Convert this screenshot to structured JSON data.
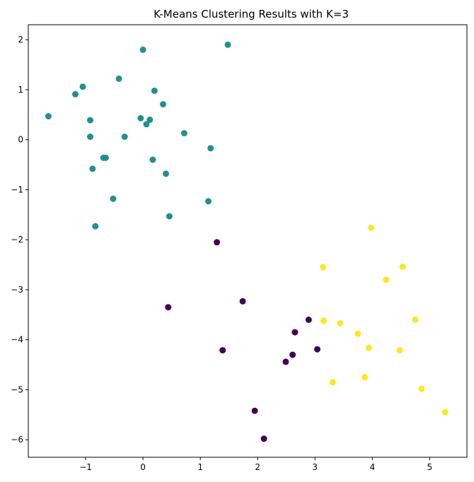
{
  "chart_data": {
    "type": "scatter",
    "title": "K-Means Clustering Results with K=3",
    "xlabel": "",
    "ylabel": "",
    "xlim": [
      -2.0,
      5.65
    ],
    "ylim": [
      -6.35,
      2.3
    ],
    "xticks": [
      -1,
      0,
      1,
      2,
      3,
      4,
      5
    ],
    "xtick_labels": [
      "−1",
      "0",
      "1",
      "2",
      "3",
      "4",
      "5"
    ],
    "yticks": [
      2,
      1,
      0,
      -1,
      -2,
      -3,
      -4,
      -5,
      -6
    ],
    "ytick_labels": [
      "2",
      "1",
      "0",
      "−1",
      "−2",
      "−3",
      "−4",
      "−5",
      "−6"
    ],
    "grid": false,
    "legend": false,
    "series": [
      {
        "color": "#21918c",
        "points": [
          [
            0.0,
            1.8
          ],
          [
            1.48,
            1.9
          ],
          [
            -1.05,
            1.06
          ],
          [
            -0.42,
            1.22
          ],
          [
            -1.18,
            0.91
          ],
          [
            0.2,
            0.98
          ],
          [
            0.35,
            0.71
          ],
          [
            -1.65,
            0.47
          ],
          [
            -0.92,
            0.39
          ],
          [
            -0.04,
            0.43
          ],
          [
            0.12,
            0.4
          ],
          [
            0.06,
            0.31
          ],
          [
            0.72,
            0.13
          ],
          [
            -0.92,
            0.06
          ],
          [
            -0.32,
            0.06
          ],
          [
            1.18,
            -0.17
          ],
          [
            -0.65,
            -0.36
          ],
          [
            -0.69,
            -0.36
          ],
          [
            0.17,
            -0.4
          ],
          [
            -0.88,
            -0.58
          ],
          [
            0.4,
            -0.68
          ],
          [
            -0.52,
            -1.18
          ],
          [
            1.14,
            -1.23
          ],
          [
            0.46,
            -1.53
          ],
          [
            -0.83,
            -1.73
          ]
        ]
      },
      {
        "color": "#440154",
        "points": [
          [
            1.29,
            -2.05
          ],
          [
            0.44,
            -3.35
          ],
          [
            1.74,
            -3.23
          ],
          [
            2.89,
            -3.6
          ],
          [
            2.65,
            -3.85
          ],
          [
            1.39,
            -4.21
          ],
          [
            3.04,
            -4.19
          ],
          [
            2.61,
            -4.3
          ],
          [
            2.49,
            -4.44
          ],
          [
            1.95,
            -5.42
          ],
          [
            2.11,
            -5.98
          ]
        ]
      },
      {
        "color": "#fde725",
        "points": [
          [
            3.98,
            -1.76
          ],
          [
            3.14,
            -2.55
          ],
          [
            4.53,
            -2.54
          ],
          [
            4.24,
            -2.8
          ],
          [
            3.15,
            -3.62
          ],
          [
            3.44,
            -3.67
          ],
          [
            4.75,
            -3.6
          ],
          [
            3.75,
            -3.88
          ],
          [
            3.94,
            -4.16
          ],
          [
            4.48,
            -4.21
          ],
          [
            3.87,
            -4.75
          ],
          [
            3.31,
            -4.85
          ],
          [
            4.86,
            -4.98
          ],
          [
            5.27,
            -5.45
          ]
        ]
      }
    ]
  }
}
